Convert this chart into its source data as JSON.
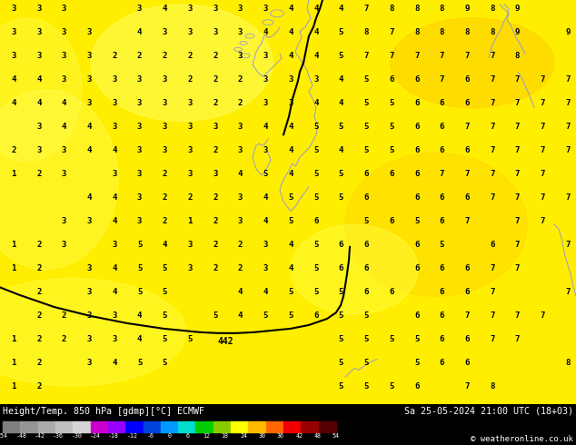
{
  "title_left": "Height/Temp. 850 hPa [gdmp][°C] ECMWF",
  "title_right": "Sa 25-05-2024 21:00 UTC (18+03)",
  "copyright": "© weatheronline.co.uk",
  "colorbar_values": [
    -54,
    -48,
    -42,
    -36,
    -30,
    -24,
    -18,
    -12,
    -6,
    0,
    6,
    12,
    18,
    24,
    30,
    36,
    42,
    48,
    54
  ],
  "colorbar_colors": [
    "#7f7f7f",
    "#959595",
    "#ababab",
    "#c0c0c0",
    "#d5d5d5",
    "#cc00cc",
    "#9900ff",
    "#0000ff",
    "#0044dd",
    "#0099ff",
    "#00ddcc",
    "#00cc00",
    "#88cc00",
    "#ffff00",
    "#ffbb00",
    "#ff6600",
    "#ee0000",
    "#990000",
    "#550000"
  ],
  "numbers": [
    [
      3,
      3,
      3,
      null,
      null,
      3,
      4,
      3,
      3,
      3,
      3,
      4,
      4,
      4,
      7,
      8,
      8,
      8,
      9,
      8,
      9,
      null,
      null
    ],
    [
      3,
      3,
      3,
      3,
      null,
      4,
      3,
      3,
      3,
      3,
      4,
      4,
      4,
      5,
      8,
      7,
      8,
      8,
      8,
      8,
      9,
      null,
      9
    ],
    [
      3,
      3,
      3,
      3,
      2,
      2,
      2,
      2,
      2,
      3,
      3,
      4,
      4,
      5,
      7,
      7,
      7,
      7,
      7,
      7,
      8,
      null,
      null
    ],
    [
      4,
      4,
      3,
      3,
      3,
      3,
      3,
      2,
      2,
      2,
      3,
      3,
      3,
      4,
      5,
      6,
      6,
      7,
      6,
      7,
      7,
      7,
      7
    ],
    [
      4,
      4,
      4,
      3,
      3,
      3,
      3,
      3,
      2,
      2,
      3,
      3,
      4,
      4,
      5,
      5,
      6,
      6,
      6,
      7,
      7,
      7,
      7
    ],
    [
      null,
      3,
      4,
      4,
      3,
      3,
      3,
      3,
      3,
      3,
      4,
      4,
      5,
      5,
      5,
      5,
      6,
      6,
      7,
      7,
      7,
      7,
      7
    ],
    [
      2,
      3,
      3,
      4,
      4,
      3,
      3,
      3,
      2,
      3,
      3,
      4,
      5,
      4,
      5,
      5,
      6,
      6,
      6,
      7,
      7,
      7,
      7
    ],
    [
      1,
      2,
      3,
      null,
      3,
      3,
      2,
      3,
      3,
      4,
      5,
      4,
      5,
      5,
      6,
      6,
      6,
      7,
      7,
      7,
      7,
      7,
      null
    ],
    [
      null,
      null,
      null,
      4,
      4,
      3,
      2,
      2,
      2,
      3,
      4,
      5,
      5,
      5,
      6,
      null,
      6,
      6,
      6,
      7,
      7,
      7,
      7
    ],
    [
      null,
      null,
      3,
      3,
      4,
      3,
      2,
      1,
      2,
      3,
      4,
      5,
      6,
      null,
      5,
      6,
      5,
      6,
      7,
      null,
      7,
      7,
      null
    ],
    [
      1,
      2,
      3,
      null,
      3,
      5,
      4,
      3,
      2,
      2,
      3,
      4,
      5,
      6,
      6,
      null,
      6,
      5,
      null,
      6,
      7,
      null,
      7
    ],
    [
      1,
      2,
      null,
      3,
      4,
      5,
      5,
      3,
      2,
      2,
      3,
      4,
      5,
      6,
      6,
      null,
      6,
      6,
      6,
      7,
      7,
      null,
      null
    ],
    [
      null,
      2,
      null,
      3,
      4,
      5,
      5,
      null,
      null,
      4,
      4,
      5,
      5,
      5,
      6,
      6,
      null,
      6,
      6,
      7,
      null,
      null,
      7
    ],
    [
      null,
      2,
      2,
      3,
      3,
      4,
      5,
      null,
      5,
      4,
      5,
      5,
      6,
      5,
      5,
      null,
      6,
      6,
      7,
      7,
      7,
      7,
      null
    ],
    [
      1,
      2,
      2,
      3,
      3,
      4,
      5,
      5,
      null,
      null,
      null,
      null,
      null,
      5,
      5,
      5,
      5,
      6,
      6,
      7,
      7,
      null,
      null
    ],
    [
      1,
      2,
      null,
      3,
      4,
      5,
      5,
      null,
      null,
      null,
      null,
      null,
      null,
      5,
      5,
      null,
      5,
      6,
      6,
      null,
      null,
      null,
      8
    ],
    [
      1,
      2,
      null,
      null,
      null,
      null,
      null,
      null,
      null,
      null,
      null,
      null,
      null,
      5,
      5,
      5,
      6,
      null,
      7,
      8,
      null,
      null,
      null
    ]
  ],
  "num_rows": 17,
  "num_cols": 23,
  "map_bg_color": "#ffee00",
  "footer_bg": "#000000"
}
